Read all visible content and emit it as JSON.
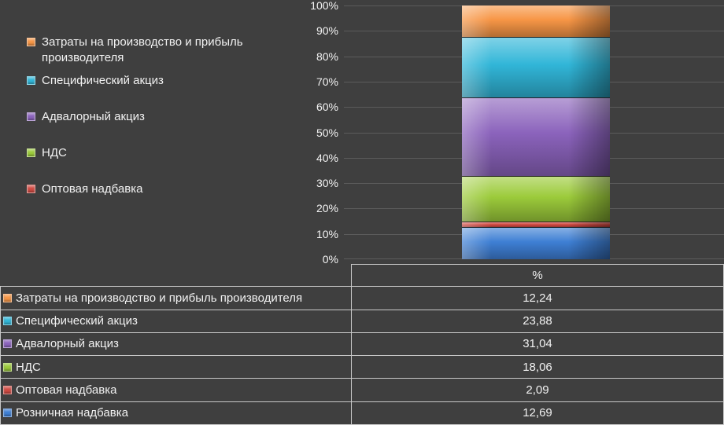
{
  "chart": {
    "background": "#3F3F3F",
    "grid_color": "#5B5B5B",
    "text_color": "#F2F2F2",
    "y_axis": {
      "ticks": [
        "100%",
        "90%",
        "80%",
        "70%",
        "60%",
        "50%",
        "40%",
        "30%",
        "20%",
        "10%",
        "0%"
      ]
    },
    "legend": {
      "items": [
        {
          "label": "Затраты на производство и прибыль производителя",
          "color": "#F79646"
        },
        {
          "label": "Специфический акциз",
          "color": "#31B6D8"
        },
        {
          "label": "Адвалорный акциз",
          "color": "#8B63BC"
        },
        {
          "label": "НДС",
          "color": "#9CCB3B"
        },
        {
          "label": "Оптовая надбавка",
          "color": "#D24B43"
        }
      ]
    }
  },
  "chart_data": {
    "type": "bar",
    "stacked": true,
    "title": "",
    "categories": [
      ""
    ],
    "xlabel": "",
    "ylabel": "",
    "ylim": [
      0,
      100
    ],
    "y_tick_step": 10,
    "grid": true,
    "legend_position": "left",
    "series": [
      {
        "name": "Затраты на производство и прибыль производителя",
        "values": [
          12.24
        ],
        "color": "#F79646"
      },
      {
        "name": "Специфический акциз",
        "values": [
          23.88
        ],
        "color": "#31B6D8"
      },
      {
        "name": "Адвалорный акциз",
        "values": [
          31.04
        ],
        "color": "#8B63BC"
      },
      {
        "name": "НДС",
        "values": [
          18.06
        ],
        "color": "#9CCB3B"
      },
      {
        "name": "Оптовая надбавка",
        "values": [
          2.09
        ],
        "color": "#D24B43"
      },
      {
        "name": "Розничная надбавка",
        "values": [
          12.69
        ],
        "color": "#3E7FD4"
      }
    ],
    "stack_order_bottom_to_top": [
      "Розничная надбавка",
      "Оптовая надбавка",
      "НДС",
      "Адвалорный акциз",
      "Специфический акциз",
      "Затраты на производство и прибыль производителя"
    ]
  },
  "table": {
    "header": {
      "label": "",
      "value_header": "%"
    },
    "rows": [
      {
        "label": "Затраты на производство и прибыль производителя",
        "value": "12,24",
        "color": "#F79646"
      },
      {
        "label": "Специфический акциз",
        "value": "23,88",
        "color": "#31B6D8"
      },
      {
        "label": "Адвалорный акциз",
        "value": "31,04",
        "color": "#8B63BC"
      },
      {
        "label": "НДС",
        "value": "18,06",
        "color": "#9CCB3B"
      },
      {
        "label": "Оптовая надбавка",
        "value": "2,09",
        "color": "#D24B43"
      },
      {
        "label": "Розничная надбавка",
        "value": "12,69",
        "color": "#3E7FD4"
      }
    ]
  }
}
